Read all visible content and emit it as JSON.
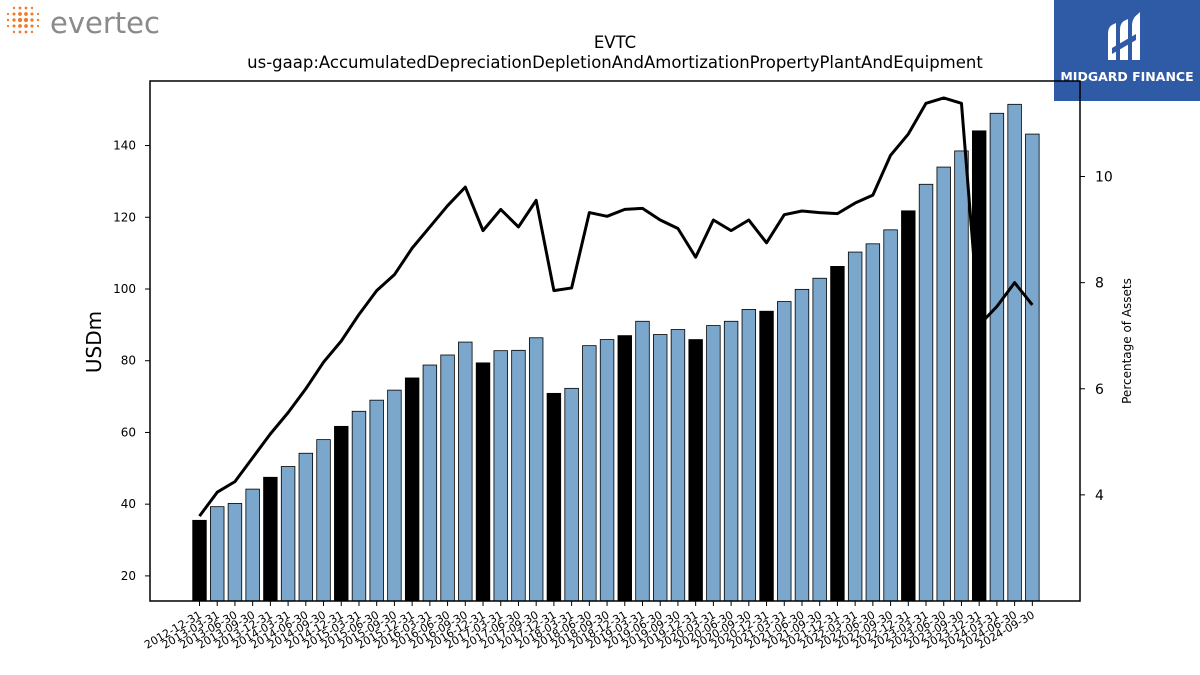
{
  "brand": {
    "left_logo_text": "evertec",
    "right_logo_text": "MIDGARD FINANCE",
    "right_logo_bg": "#2f5aa6",
    "left_logo_color": "#8a8a8a",
    "left_logo_dot_color": "#f07a2a"
  },
  "chart_data": {
    "type": "bar",
    "title": "EVTC",
    "subtitle": "us-gaap:AccumulatedDepreciationDepletionAndAmortizationPropertyPlantAndEquipment",
    "ylabel": "USDm",
    "y2label": "Percentage of Assets",
    "ylim": [
      13,
      158
    ],
    "y2lim": [
      2.0,
      11.8
    ],
    "yticks": [
      20,
      40,
      60,
      80,
      100,
      120,
      140
    ],
    "y2ticks": [
      4,
      6,
      8,
      10
    ],
    "grid": false,
    "colors": {
      "bar_quarter": "#7ba7cc",
      "bar_year_end": "#000000",
      "line": "#000000"
    },
    "categories": [
      "2012-12-31",
      "2013-03-31",
      "2013-06-30",
      "2013-09-30",
      "2013-12-31",
      "2014-03-31",
      "2014-06-30",
      "2014-09-30",
      "2014-12-31",
      "2015-03-31",
      "2015-06-30",
      "2015-09-30",
      "2015-12-31",
      "2016-03-31",
      "2016-06-30",
      "2016-09-30",
      "2016-12-31",
      "2017-03-31",
      "2017-06-30",
      "2017-09-30",
      "2017-12-31",
      "2018-03-31",
      "2018-06-30",
      "2018-09-30",
      "2018-12-31",
      "2019-03-31",
      "2019-06-30",
      "2019-09-30",
      "2019-12-31",
      "2020-03-31",
      "2020-06-30",
      "2020-09-30",
      "2020-12-31",
      "2021-03-31",
      "2021-06-30",
      "2021-09-30",
      "2021-12-31",
      "2022-03-31",
      "2022-06-30",
      "2022-09-30",
      "2022-12-31",
      "2023-03-31",
      "2023-06-30",
      "2023-09-30",
      "2023-12-31",
      "2024-03-31",
      "2024-06-30",
      "2024-09-30"
    ],
    "series": [
      {
        "values": [
          35.5,
          39.3,
          40.2,
          44.2,
          47.5,
          50.5,
          54.2,
          58.0,
          61.7,
          65.9,
          69.0,
          71.8,
          75.2,
          78.8,
          81.6,
          85.2,
          79.4,
          82.8,
          82.9,
          86.4,
          70.9,
          72.3,
          84.2,
          85.9,
          87.0,
          91.0,
          87.3,
          88.7,
          85.9,
          89.8,
          91.0,
          94.3,
          93.8,
          96.5,
          99.9,
          103.0,
          106.3,
          110.3,
          112.6,
          116.5,
          121.8,
          129.2,
          134.0,
          138.5,
          144.1,
          149.0,
          151.5,
          143.2
        ]
      },
      {
        "axis": "right",
        "values": [
          3.6,
          4.05,
          4.25,
          4.7,
          5.15,
          5.55,
          6.0,
          6.5,
          6.9,
          7.4,
          7.85,
          8.15,
          8.65,
          9.05,
          9.45,
          9.8,
          8.98,
          9.38,
          9.05,
          9.55,
          7.85,
          7.9,
          9.32,
          9.25,
          9.38,
          9.4,
          9.18,
          9.02,
          8.48,
          9.18,
          8.98,
          9.18,
          8.75,
          9.28,
          9.35,
          9.32,
          9.3,
          9.5,
          9.65,
          10.4,
          10.8,
          11.38,
          11.48,
          11.38,
          7.2,
          7.55,
          8.0,
          7.58
        ]
      }
    ]
  }
}
